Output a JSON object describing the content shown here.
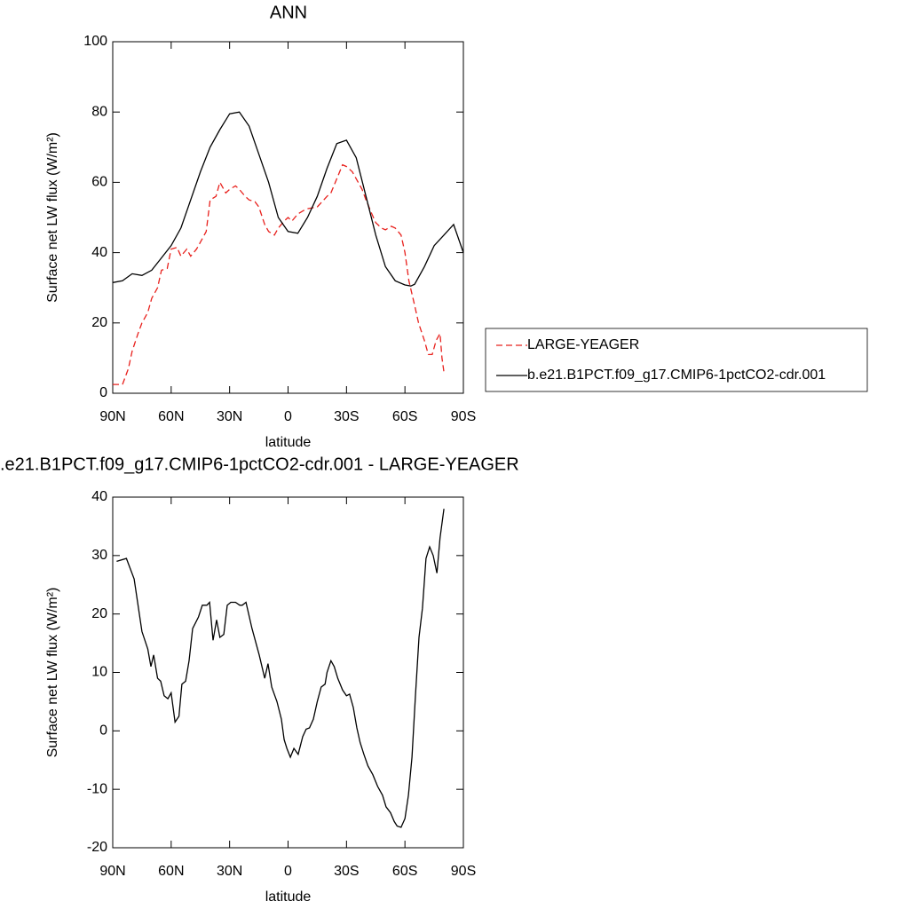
{
  "chart_data": [
    {
      "type": "line",
      "title": "ANN",
      "xlabel": "latitude",
      "ylabel": "Surface net LW flux (W/m²)",
      "xlim": [
        90,
        -90
      ],
      "xticks": [
        {
          "value": 90,
          "label": "90N"
        },
        {
          "value": 60,
          "label": "60N"
        },
        {
          "value": 30,
          "label": "30N"
        },
        0,
        {
          "value": -30,
          "label": "30S"
        },
        {
          "value": -60,
          "label": "60S"
        },
        {
          "value": -90,
          "label": "90S"
        }
      ],
      "ylim": [
        0,
        100
      ],
      "yticks": [
        0,
        20,
        40,
        60,
        80,
        100
      ],
      "legend": "right",
      "series": [
        {
          "name": "LARGE-YEAGER",
          "color": "#e8201c",
          "dashed": true,
          "x": [
            90,
            87,
            85,
            82,
            80,
            77,
            75,
            72,
            70,
            67,
            65,
            62,
            60,
            57,
            55,
            52,
            50,
            47,
            45,
            42,
            40,
            37,
            35,
            32,
            30,
            27,
            25,
            22,
            20,
            17,
            15,
            12,
            10,
            7,
            5,
            2,
            0,
            -2,
            -5,
            -8,
            -10,
            -15,
            -20,
            -22,
            -25,
            -28,
            -30,
            -33,
            -35,
            -38,
            -40,
            -43,
            -45,
            -48,
            -50,
            -53,
            -55,
            -58,
            -60,
            -62,
            -65,
            -67,
            -70,
            -72,
            -74,
            -76,
            -78,
            -79,
            -80
          ],
          "values": [
            2.5,
            2.5,
            2.5,
            7,
            12,
            17,
            20,
            23,
            27,
            30,
            35,
            35.5,
            41,
            41.5,
            39,
            41,
            39,
            41,
            43,
            46,
            55,
            56,
            60,
            57,
            58,
            59,
            58,
            56,
            55,
            54.5,
            53,
            48,
            46,
            45,
            47,
            49,
            50,
            49,
            51,
            52,
            52.5,
            53,
            56,
            57,
            61,
            65,
            64.5,
            63,
            61,
            58,
            55,
            51,
            48.5,
            47,
            46.5,
            47.5,
            47,
            45,
            40,
            32,
            25,
            20,
            15,
            11,
            11,
            15,
            17,
            10,
            6
          ]
        },
        {
          "name": "b.e21.B1PCT.f09_g17.CMIP6-1pctCO2-cdr.001",
          "color": "#000000",
          "dashed": false,
          "x": [
            90,
            85,
            80,
            75,
            70,
            65,
            60,
            55,
            50,
            45,
            40,
            35,
            30,
            25,
            20,
            15,
            10,
            5,
            0,
            -5,
            -10,
            -15,
            -20,
            -25,
            -30,
            -35,
            -40,
            -45,
            -50,
            -55,
            -60,
            -63,
            -65,
            -70,
            -75,
            -80,
            -85,
            -90
          ],
          "values": [
            31.5,
            32,
            34,
            33.5,
            35,
            38.5,
            42,
            47,
            55,
            63,
            70,
            75,
            79.5,
            80,
            76,
            68,
            60,
            50,
            46,
            45.5,
            50,
            56,
            64,
            71,
            72,
            67,
            56,
            45,
            36,
            32,
            30.8,
            30.5,
            31,
            36,
            42,
            45,
            48,
            40
          ]
        }
      ]
    },
    {
      "type": "line",
      "title": ".e21.B1PCT.f09_g17.CMIP6-1pctCO2-cdr.001 - LARGE-YEAGER",
      "xlabel": "latitude",
      "ylabel": "Surface net LW flux (W/m²)",
      "xlim": [
        90,
        -90
      ],
      "xticks": [
        {
          "value": 90,
          "label": "90N"
        },
        {
          "value": 60,
          "label": "60N"
        },
        {
          "value": 30,
          "label": "30N"
        },
        0,
        {
          "value": -30,
          "label": "30S"
        },
        {
          "value": -60,
          "label": "60S"
        },
        {
          "value": -90,
          "label": "90S"
        }
      ],
      "ylim": [
        -20,
        40
      ],
      "yticks": [
        -20,
        -10,
        0,
        10,
        20,
        30,
        40
      ],
      "series": [
        {
          "color": "#000000",
          "dashed": false,
          "x": [
            88,
            83,
            79,
            75,
            72,
            70.4,
            69,
            67,
            65.4,
            63.6,
            61.7,
            60,
            58,
            56,
            54.5,
            52.6,
            50.8,
            49,
            46,
            44,
            41.7,
            40.3,
            38.5,
            36.7,
            35,
            33,
            31.2,
            29.4,
            27,
            24.8,
            23.5,
            21.6,
            18.5,
            14.8,
            12,
            10.3,
            8.4,
            5.7,
            3.4,
            2,
            0.6,
            -1.2,
            -3,
            -5.2,
            -7.5,
            -9.3,
            -11,
            -13,
            -15,
            -17,
            -19,
            -20,
            -22,
            -23.7,
            -25.5,
            -28,
            -30,
            -31.6,
            -33.5,
            -35.3,
            -37,
            -38.9,
            -41,
            -43.5,
            -46,
            -48.5,
            -50.3,
            -52.6,
            -54.5,
            -56,
            -58,
            -60,
            -61.8,
            -63.6,
            -65.4,
            -67.2,
            -69,
            -70.8,
            -72.7,
            -74.5,
            -76.4,
            -78,
            -80
          ],
          "values": [
            29,
            29.5,
            26,
            17,
            14,
            11,
            13,
            9,
            8.5,
            6,
            5.5,
            6.5,
            1.5,
            2.5,
            8,
            8.5,
            12,
            17.5,
            19.5,
            21.5,
            21.5,
            22,
            15.5,
            19,
            16,
            16.5,
            21.5,
            22,
            22,
            21.5,
            21.5,
            22,
            17.5,
            13,
            9,
            11.5,
            7.5,
            5,
            2,
            -1.5,
            -3,
            -4.5,
            -3,
            -4,
            -1,
            0.3,
            0.5,
            2,
            5,
            7.5,
            8,
            10,
            12,
            11,
            9,
            7,
            6,
            6.3,
            4,
            0.5,
            -2,
            -4,
            -6,
            -7.5,
            -9.5,
            -11,
            -13,
            -14,
            -15.5,
            -16.3,
            -16.5,
            -15,
            -11,
            -4.5,
            6,
            16,
            21,
            29.5,
            31.5,
            30,
            27,
            33,
            38
          ]
        }
      ]
    }
  ]
}
